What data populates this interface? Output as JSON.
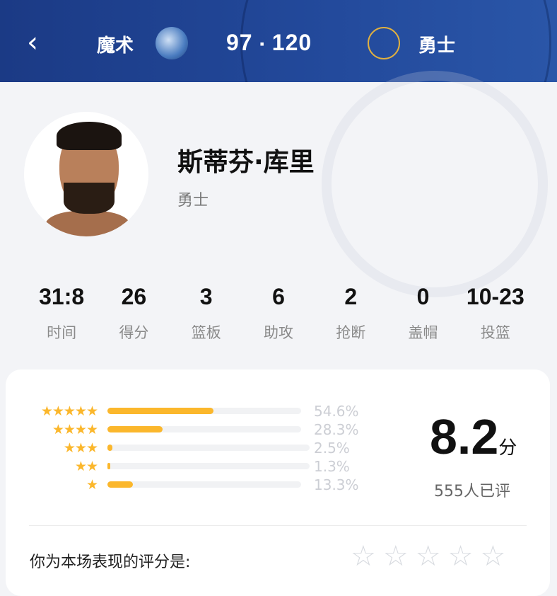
{
  "header": {
    "back_icon": "chevron-left-icon",
    "home_team": "魔术",
    "away_team": "勇士",
    "home_score": "97",
    "separator": "▪",
    "away_score": "120"
  },
  "player": {
    "name": "斯蒂芬·库里",
    "team": "勇士"
  },
  "stats": [
    {
      "value": "31:8",
      "label": "时间"
    },
    {
      "value": "26",
      "label": "得分"
    },
    {
      "value": "3",
      "label": "篮板"
    },
    {
      "value": "6",
      "label": "助攻"
    },
    {
      "value": "2",
      "label": "抢断"
    },
    {
      "value": "0",
      "label": "盖帽"
    },
    {
      "value": "10-23",
      "label": "投篮"
    }
  ],
  "rating": {
    "distribution": [
      {
        "stars": 5,
        "percent": 54.6,
        "label": "54.6%"
      },
      {
        "stars": 4,
        "percent": 28.3,
        "label": "28.3%"
      },
      {
        "stars": 3,
        "percent": 2.5,
        "label": "2.5%"
      },
      {
        "stars": 2,
        "percent": 1.3,
        "label": "1.3%"
      },
      {
        "stars": 1,
        "percent": 13.3,
        "label": "13.3%"
      }
    ],
    "score": "8.2",
    "unit": "分",
    "count": "555人已评",
    "prompt": "你为本场表现的评分是:",
    "accent": "#fbb72c"
  }
}
